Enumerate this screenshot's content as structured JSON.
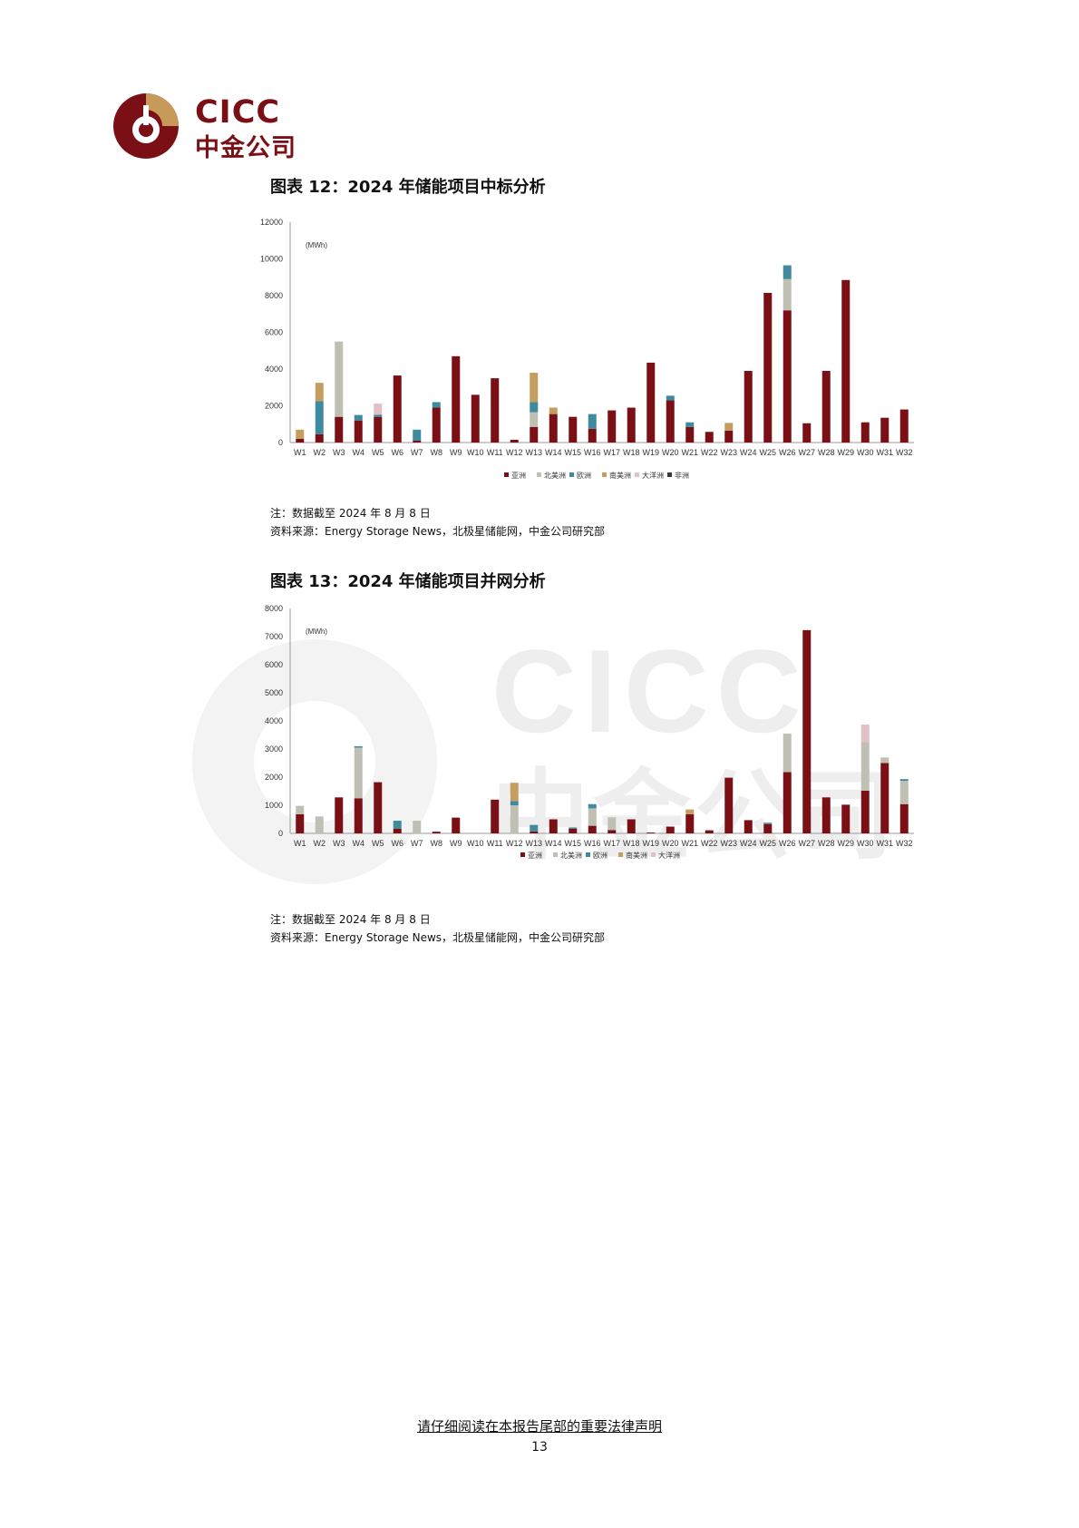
{
  "logo": {
    "en": "CICC",
    "zh": "中金公司",
    "colors": {
      "maroon": "#7a1015",
      "gold": "#c89a5a"
    }
  },
  "watermark": {
    "en": "CICC",
    "zh": "中金公司"
  },
  "figures": [
    {
      "title": "图表 12：2024 年储能项目中标分析",
      "note": "注：数据截至 2024 年 8 月 8 日",
      "source": "资料来源：Energy Storage News，北极星储能网，中金公司研究部"
    },
    {
      "title": "图表 13：2024 年储能项目并网分析",
      "note": "注：数据截至 2024 年 8 月 8 日",
      "source": "资料来源：Energy Storage News，北极星储能网，中金公司研究部"
    }
  ],
  "chart_data": [
    {
      "type": "bar",
      "stacked": true,
      "unit_label": "(MWh)",
      "ylim": [
        0,
        12000
      ],
      "yticks": [
        0,
        2000,
        4000,
        6000,
        8000,
        10000,
        12000
      ],
      "grid": false,
      "legend_position": "bottom",
      "categories": [
        "W1",
        "W2",
        "W3",
        "W4",
        "W5",
        "W6",
        "W7",
        "W8",
        "W9",
        "W10",
        "W11",
        "W12",
        "W13",
        "W14",
        "W15",
        "W16",
        "W17",
        "W18",
        "W19",
        "W20",
        "W21",
        "W22",
        "W23",
        "W24",
        "W25",
        "W26",
        "W27",
        "W28",
        "W29",
        "W30",
        "W31",
        "W32"
      ],
      "series": [
        {
          "name": "亚洲",
          "color": "#7a1015",
          "values": [
            200,
            450,
            1400,
            1200,
            1400,
            3650,
            100,
            1900,
            4700,
            2600,
            3500,
            150,
            850,
            1550,
            1400,
            750,
            1750,
            1900,
            4350,
            2300,
            850,
            580,
            650,
            3900,
            8150,
            7200,
            1050,
            3900,
            8850,
            1100,
            1350,
            1800
          ]
        },
        {
          "name": "北美洲",
          "color": "#bfbfb4",
          "values": [
            0,
            0,
            4100,
            0,
            0,
            0,
            0,
            0,
            0,
            0,
            0,
            0,
            800,
            0,
            0,
            0,
            0,
            0,
            0,
            0,
            0,
            0,
            0,
            0,
            0,
            1700,
            0,
            0,
            0,
            0,
            0,
            0
          ]
        },
        {
          "name": "欧洲",
          "color": "#3f8a9e",
          "values": [
            0,
            1800,
            0,
            300,
            120,
            0,
            600,
            300,
            0,
            0,
            0,
            0,
            550,
            0,
            0,
            800,
            0,
            0,
            0,
            250,
            250,
            0,
            0,
            0,
            0,
            750,
            0,
            0,
            0,
            0,
            0,
            0
          ]
        },
        {
          "name": "南美洲",
          "color": "#c59d5f",
          "values": [
            500,
            1000,
            0,
            0,
            0,
            0,
            0,
            0,
            0,
            0,
            0,
            0,
            1600,
            350,
            0,
            0,
            0,
            0,
            0,
            0,
            0,
            0,
            420,
            0,
            0,
            0,
            0,
            0,
            0,
            0,
            0,
            0
          ]
        },
        {
          "name": "大洋洲",
          "color": "#e2c0c8",
          "values": [
            0,
            0,
            0,
            0,
            600,
            0,
            0,
            0,
            0,
            0,
            0,
            0,
            0,
            0,
            0,
            0,
            0,
            0,
            0,
            0,
            0,
            0,
            0,
            0,
            0,
            0,
            0,
            0,
            0,
            0,
            0,
            0
          ]
        },
        {
          "name": "非洲",
          "color": "#3a3a3a",
          "values": [
            0,
            0,
            0,
            0,
            0,
            0,
            0,
            0,
            0,
            0,
            0,
            0,
            0,
            0,
            0,
            0,
            0,
            0,
            0,
            0,
            0,
            0,
            0,
            0,
            0,
            0,
            0,
            0,
            0,
            0,
            0,
            0
          ]
        }
      ]
    },
    {
      "type": "bar",
      "stacked": true,
      "unit_label": "(MWh)",
      "ylim": [
        0,
        8000
      ],
      "yticks": [
        0,
        1000,
        2000,
        3000,
        4000,
        5000,
        6000,
        7000,
        8000
      ],
      "grid": false,
      "legend_position": "bottom",
      "categories": [
        "W1",
        "W2",
        "W3",
        "W4",
        "W5",
        "W6",
        "W7",
        "W8",
        "W9",
        "W10",
        "W11",
        "W12",
        "W13",
        "W14",
        "W15",
        "W16",
        "W17",
        "W18",
        "W19",
        "W20",
        "W21",
        "W22",
        "W23",
        "W24",
        "W25",
        "W26",
        "W27",
        "W28",
        "W29",
        "W30",
        "W31",
        "W32"
      ],
      "series": [
        {
          "name": "亚洲",
          "color": "#7a1015",
          "values": [
            680,
            0,
            1280,
            1250,
            1820,
            170,
            0,
            60,
            560,
            0,
            1200,
            0,
            70,
            500,
            170,
            270,
            120,
            500,
            30,
            240,
            680,
            110,
            1980,
            470,
            330,
            2180,
            7230,
            1280,
            1020,
            1520,
            2500,
            1040
          ]
        },
        {
          "name": "北美洲",
          "color": "#bfbfb4",
          "values": [
            300,
            600,
            0,
            1800,
            0,
            0,
            450,
            0,
            0,
            0,
            0,
            1000,
            0,
            0,
            0,
            620,
            450,
            0,
            0,
            0,
            0,
            0,
            0,
            0,
            0,
            1370,
            0,
            0,
            0,
            1730,
            200,
            830
          ]
        },
        {
          "name": "欧洲",
          "color": "#3f8a9e",
          "values": [
            0,
            0,
            0,
            50,
            0,
            280,
            0,
            0,
            0,
            0,
            0,
            150,
            230,
            0,
            40,
            150,
            0,
            0,
            0,
            0,
            0,
            0,
            0,
            0,
            50,
            0,
            0,
            0,
            0,
            0,
            0,
            60
          ]
        },
        {
          "name": "南美洲",
          "color": "#c59d5f",
          "values": [
            0,
            0,
            0,
            0,
            0,
            0,
            0,
            0,
            0,
            0,
            0,
            650,
            0,
            0,
            0,
            0,
            0,
            0,
            0,
            0,
            170,
            0,
            0,
            0,
            0,
            0,
            0,
            0,
            0,
            0,
            0,
            0
          ]
        },
        {
          "name": "大洋洲",
          "color": "#e2c0c8",
          "values": [
            0,
            0,
            0,
            0,
            0,
            0,
            0,
            0,
            0,
            0,
            0,
            0,
            0,
            0,
            0,
            0,
            0,
            0,
            0,
            0,
            0,
            0,
            0,
            0,
            0,
            0,
            0,
            0,
            0,
            620,
            0,
            0
          ]
        }
      ]
    }
  ],
  "footer": {
    "notice": "请仔细阅读在本报告尾部的重要法律声明",
    "page_number": "13"
  }
}
